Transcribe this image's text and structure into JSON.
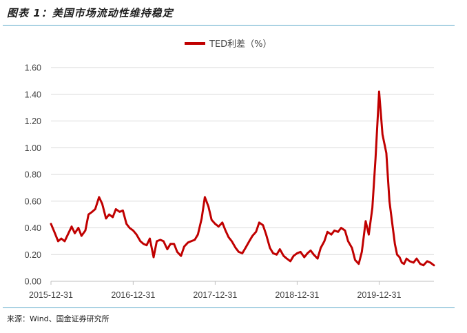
{
  "figure": {
    "title": "图表 1：美国市场流动性维持稳定",
    "source": "来源：Wind、国金证券研究所"
  },
  "chart_data": {
    "type": "line",
    "title": "",
    "xlabel": "",
    "ylabel": "",
    "ylim": [
      0,
      1.6
    ],
    "y_ticks": [
      "0.00",
      "0.20",
      "0.40",
      "0.60",
      "0.80",
      "1.00",
      "1.20",
      "1.40",
      "1.60"
    ],
    "x_ticks": [
      "2015-12-31",
      "2016-12-31",
      "2017-12-31",
      "2018-12-31",
      "2019-12-31"
    ],
    "xlim": [
      "2015-12-31",
      "2020-08-31"
    ],
    "grid": true,
    "legend": "top-center",
    "series": [
      {
        "name": "TED利差（%）",
        "color": "#c00000",
        "x": [
          "2015-12-31",
          "2016-01-15",
          "2016-02-01",
          "2016-02-15",
          "2016-03-01",
          "2016-03-15",
          "2016-04-01",
          "2016-04-15",
          "2016-05-01",
          "2016-05-15",
          "2016-06-01",
          "2016-06-15",
          "2016-07-01",
          "2016-07-15",
          "2016-08-01",
          "2016-08-15",
          "2016-09-01",
          "2016-09-15",
          "2016-10-01",
          "2016-10-15",
          "2016-11-01",
          "2016-11-15",
          "2016-12-01",
          "2016-12-15",
          "2016-12-31",
          "2017-01-15",
          "2017-02-01",
          "2017-02-15",
          "2017-03-01",
          "2017-03-15",
          "2017-04-01",
          "2017-04-15",
          "2017-05-01",
          "2017-05-15",
          "2017-06-01",
          "2017-06-15",
          "2017-07-01",
          "2017-07-15",
          "2017-08-01",
          "2017-08-15",
          "2017-09-01",
          "2017-09-15",
          "2017-10-01",
          "2017-10-15",
          "2017-11-01",
          "2017-11-15",
          "2017-12-01",
          "2017-12-15",
          "2017-12-31",
          "2018-01-15",
          "2018-02-01",
          "2018-02-15",
          "2018-03-01",
          "2018-03-15",
          "2018-04-01",
          "2018-04-15",
          "2018-05-01",
          "2018-05-15",
          "2018-06-01",
          "2018-06-15",
          "2018-07-01",
          "2018-07-15",
          "2018-08-01",
          "2018-08-15",
          "2018-09-01",
          "2018-09-15",
          "2018-10-01",
          "2018-10-15",
          "2018-11-01",
          "2018-11-15",
          "2018-12-01",
          "2018-12-15",
          "2018-12-31",
          "2019-01-15",
          "2019-02-01",
          "2019-02-15",
          "2019-03-01",
          "2019-03-15",
          "2019-04-01",
          "2019-04-15",
          "2019-05-01",
          "2019-05-15",
          "2019-06-01",
          "2019-06-15",
          "2019-07-01",
          "2019-07-15",
          "2019-08-01",
          "2019-08-15",
          "2019-09-01",
          "2019-09-15",
          "2019-10-01",
          "2019-10-15",
          "2019-11-01",
          "2019-11-15",
          "2019-12-01",
          "2019-12-15",
          "2019-12-31",
          "2020-01-15",
          "2020-02-01",
          "2020-02-15",
          "2020-03-01",
          "2020-03-10",
          "2020-03-20",
          "2020-03-31",
          "2020-04-10",
          "2020-04-20",
          "2020-05-01",
          "2020-05-15",
          "2020-06-01",
          "2020-06-15",
          "2020-07-01",
          "2020-07-15",
          "2020-08-01",
          "2020-08-15",
          "2020-08-31"
        ],
        "values": [
          0.43,
          0.37,
          0.3,
          0.32,
          0.3,
          0.35,
          0.41,
          0.36,
          0.4,
          0.34,
          0.38,
          0.5,
          0.52,
          0.54,
          0.63,
          0.58,
          0.47,
          0.5,
          0.48,
          0.54,
          0.52,
          0.53,
          0.43,
          0.4,
          0.38,
          0.35,
          0.3,
          0.28,
          0.27,
          0.32,
          0.18,
          0.3,
          0.31,
          0.3,
          0.24,
          0.28,
          0.28,
          0.22,
          0.19,
          0.26,
          0.29,
          0.3,
          0.31,
          0.35,
          0.47,
          0.63,
          0.56,
          0.46,
          0.43,
          0.41,
          0.44,
          0.38,
          0.33,
          0.3,
          0.25,
          0.22,
          0.21,
          0.25,
          0.3,
          0.34,
          0.37,
          0.44,
          0.42,
          0.35,
          0.25,
          0.21,
          0.2,
          0.24,
          0.19,
          0.17,
          0.15,
          0.19,
          0.21,
          0.22,
          0.18,
          0.21,
          0.23,
          0.2,
          0.17,
          0.25,
          0.3,
          0.37,
          0.35,
          0.38,
          0.37,
          0.4,
          0.38,
          0.3,
          0.25,
          0.16,
          0.13,
          0.22,
          0.45,
          0.35,
          0.55,
          0.92,
          1.42,
          1.1,
          0.96,
          0.6,
          0.4,
          0.28,
          0.2,
          0.18,
          0.14,
          0.13,
          0.17,
          0.15,
          0.14,
          0.17,
          0.13,
          0.12,
          0.15,
          0.14,
          0.12
        ]
      }
    ]
  }
}
